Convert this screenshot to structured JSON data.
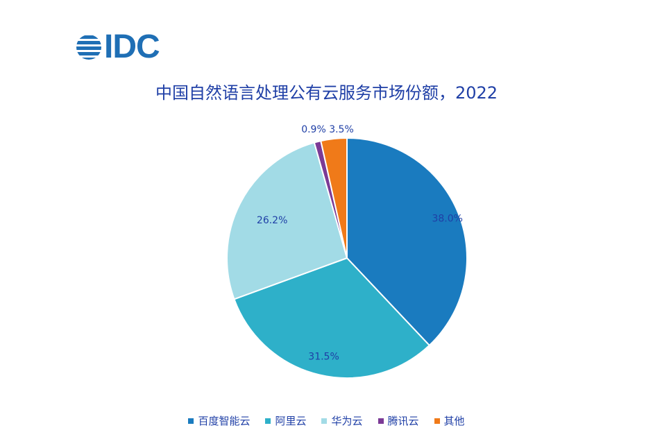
{
  "logo": {
    "text": "IDC",
    "color": "#1f6fb5"
  },
  "chart_data": {
    "type": "pie",
    "title": "中国自然语言处理公有云服务市场份额，2022",
    "categories": [
      "百度智能云",
      "阿里云",
      "华为云",
      "腾讯云",
      "其他"
    ],
    "values": [
      38.0,
      31.5,
      26.2,
      0.9,
      3.5
    ],
    "labels": [
      "38.0%",
      "31.5%",
      "26.2%",
      "0.9%",
      "3.5%"
    ],
    "colors": [
      "#1a7bbf",
      "#2eb0c9",
      "#a2dbe6",
      "#7b3a96",
      "#f07a19"
    ],
    "legend": "bottom",
    "start_angle_deg": 0,
    "direction": "clockwise"
  }
}
